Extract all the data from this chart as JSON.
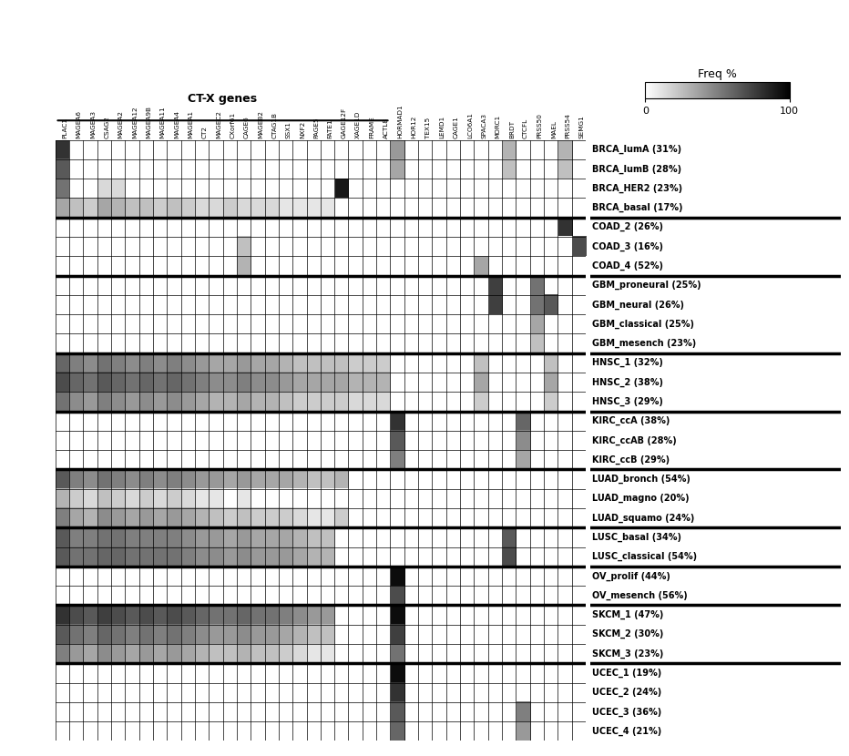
{
  "genes": [
    "PLAC1",
    "MAGEA6",
    "MAGEA3",
    "CSAG2",
    "MAGEA2",
    "MAGEA12",
    "MAGEA9B",
    "MAGEA11",
    "MAGEA4",
    "MAGEA1",
    "CT2",
    "MAGEC2",
    "CXorf61",
    "CAGE6",
    "MAGEB2",
    "CTAG1B",
    "SSX1",
    "NXF2",
    "PAGE5",
    "FATE1",
    "GAGE12F",
    "XAGE1D",
    "FRAME",
    "ACTL8",
    "HORMAD1",
    "HOR12",
    "TEX15",
    "LEMD1",
    "CAGE1",
    "LCO6A1",
    "SPACA3",
    "MORC1",
    "BRDT",
    "CTCFL",
    "PRSS50",
    "MAEL",
    "PRSS54",
    "SEMG1"
  ],
  "n_ctx_genes": 24,
  "cancer_groups": [
    {
      "subtypes": [
        "BRCA_lumA (31%)",
        "BRCA_lumB (28%)",
        "BRCA_HER2 (23%)",
        "BRCA_basal (17%)"
      ],
      "data": [
        [
          80,
          5,
          5,
          5,
          5,
          5,
          5,
          5,
          5,
          5,
          5,
          5,
          5,
          5,
          5,
          5,
          5,
          5,
          5,
          5,
          5,
          5,
          5,
          5,
          40,
          5,
          5,
          5,
          5,
          5,
          5,
          5,
          30,
          5,
          5,
          5,
          30,
          5
        ],
        [
          65,
          5,
          5,
          5,
          5,
          5,
          5,
          5,
          5,
          5,
          5,
          5,
          5,
          5,
          5,
          5,
          5,
          5,
          5,
          5,
          5,
          5,
          5,
          5,
          35,
          5,
          5,
          5,
          5,
          5,
          5,
          5,
          25,
          5,
          5,
          5,
          25,
          5
        ],
        [
          55,
          5,
          5,
          15,
          15,
          5,
          5,
          5,
          5,
          5,
          5,
          5,
          5,
          5,
          5,
          5,
          5,
          5,
          5,
          5,
          90,
          5,
          5,
          5,
          5,
          5,
          5,
          5,
          5,
          5,
          5,
          5,
          5,
          5,
          5,
          5,
          5,
          5
        ],
        [
          35,
          25,
          20,
          35,
          30,
          25,
          25,
          20,
          25,
          20,
          15,
          15,
          20,
          15,
          15,
          15,
          10,
          10,
          10,
          10,
          5,
          5,
          5,
          5,
          5,
          5,
          5,
          5,
          5,
          5,
          5,
          5,
          5,
          5,
          5,
          5,
          5,
          5
        ]
      ]
    },
    {
      "subtypes": [
        "COAD_2 (26%)",
        "COAD_3 (16%)",
        "COAD_4 (52%)"
      ],
      "data": [
        [
          5,
          5,
          5,
          5,
          5,
          5,
          5,
          5,
          5,
          5,
          5,
          5,
          5,
          5,
          5,
          5,
          5,
          5,
          5,
          5,
          5,
          5,
          5,
          5,
          5,
          5,
          5,
          5,
          5,
          5,
          5,
          5,
          5,
          5,
          5,
          5,
          80,
          5
        ],
        [
          5,
          5,
          5,
          5,
          5,
          5,
          5,
          5,
          5,
          5,
          5,
          5,
          5,
          25,
          5,
          5,
          5,
          5,
          5,
          5,
          5,
          5,
          5,
          5,
          5,
          5,
          5,
          5,
          5,
          5,
          5,
          5,
          5,
          5,
          5,
          5,
          5,
          70
        ],
        [
          5,
          5,
          5,
          5,
          5,
          5,
          5,
          5,
          5,
          5,
          5,
          5,
          5,
          30,
          5,
          5,
          5,
          5,
          5,
          5,
          5,
          5,
          5,
          5,
          5,
          5,
          5,
          5,
          5,
          5,
          35,
          5,
          5,
          5,
          5,
          5,
          5,
          5
        ]
      ]
    },
    {
      "subtypes": [
        "GBM_proneural (25%)",
        "GBM_neural (26%)",
        "GBM_classical (25%)",
        "GBM_mesench (23%)"
      ],
      "data": [
        [
          5,
          5,
          5,
          5,
          5,
          5,
          5,
          5,
          5,
          5,
          5,
          5,
          5,
          5,
          5,
          5,
          5,
          5,
          5,
          5,
          5,
          5,
          5,
          5,
          5,
          5,
          5,
          5,
          5,
          5,
          5,
          75,
          5,
          5,
          55,
          5,
          5,
          5
        ],
        [
          5,
          5,
          5,
          5,
          5,
          5,
          5,
          5,
          5,
          5,
          5,
          5,
          5,
          5,
          5,
          5,
          5,
          5,
          5,
          5,
          5,
          5,
          5,
          5,
          5,
          5,
          5,
          5,
          5,
          5,
          5,
          75,
          5,
          5,
          55,
          65,
          5,
          5
        ],
        [
          5,
          5,
          5,
          5,
          5,
          5,
          5,
          5,
          5,
          5,
          5,
          5,
          5,
          5,
          5,
          5,
          5,
          5,
          5,
          5,
          5,
          5,
          5,
          5,
          5,
          5,
          5,
          5,
          5,
          5,
          5,
          5,
          5,
          5,
          35,
          5,
          5,
          5
        ],
        [
          5,
          5,
          5,
          5,
          5,
          5,
          5,
          5,
          5,
          5,
          5,
          5,
          5,
          5,
          5,
          5,
          5,
          5,
          5,
          5,
          5,
          5,
          5,
          5,
          5,
          5,
          5,
          5,
          5,
          5,
          5,
          5,
          5,
          5,
          25,
          5,
          5,
          5
        ]
      ]
    },
    {
      "subtypes": [
        "HNSC_1 (32%)",
        "HNSC_2 (38%)",
        "HNSC_3 (29%)"
      ],
      "data": [
        [
          60,
          50,
          45,
          55,
          50,
          45,
          50,
          45,
          50,
          45,
          40,
          35,
          35,
          40,
          35,
          35,
          30,
          25,
          25,
          25,
          25,
          20,
          20,
          20,
          5,
          5,
          5,
          5,
          5,
          5,
          25,
          5,
          5,
          5,
          5,
          25,
          5,
          5
        ],
        [
          70,
          60,
          55,
          65,
          60,
          55,
          60,
          55,
          60,
          55,
          50,
          45,
          45,
          50,
          45,
          45,
          40,
          35,
          35,
          35,
          35,
          30,
          30,
          30,
          5,
          5,
          5,
          5,
          5,
          5,
          35,
          5,
          5,
          5,
          5,
          35,
          5,
          5
        ],
        [
          55,
          45,
          40,
          50,
          45,
          40,
          45,
          40,
          45,
          40,
          35,
          30,
          30,
          35,
          30,
          30,
          25,
          20,
          20,
          20,
          20,
          15,
          15,
          15,
          5,
          5,
          5,
          5,
          5,
          5,
          20,
          5,
          5,
          5,
          5,
          20,
          5,
          5
        ]
      ]
    },
    {
      "subtypes": [
        "KIRC_ccA (38%)",
        "KIRC_ccAB (28%)",
        "KIRC_ccB (29%)"
      ],
      "data": [
        [
          5,
          5,
          5,
          5,
          5,
          5,
          5,
          5,
          5,
          5,
          5,
          5,
          5,
          5,
          5,
          5,
          5,
          5,
          5,
          5,
          5,
          5,
          5,
          5,
          80,
          5,
          5,
          5,
          5,
          5,
          5,
          5,
          5,
          60,
          5,
          5,
          5,
          5
        ],
        [
          5,
          5,
          5,
          5,
          5,
          5,
          5,
          5,
          5,
          5,
          5,
          5,
          5,
          5,
          5,
          5,
          5,
          5,
          5,
          5,
          5,
          5,
          5,
          5,
          65,
          5,
          5,
          5,
          5,
          5,
          5,
          5,
          5,
          45,
          5,
          5,
          5,
          5
        ],
        [
          5,
          5,
          5,
          5,
          5,
          5,
          5,
          5,
          5,
          5,
          5,
          5,
          5,
          5,
          5,
          5,
          5,
          5,
          5,
          5,
          5,
          5,
          5,
          5,
          50,
          5,
          5,
          5,
          5,
          5,
          5,
          5,
          5,
          35,
          5,
          5,
          5,
          5
        ]
      ]
    },
    {
      "subtypes": [
        "LUAD_bronch (54%)",
        "LUAD_magno (20%)",
        "LUAD_squamo (24%)"
      ],
      "data": [
        [
          65,
          50,
          45,
          55,
          50,
          45,
          50,
          45,
          50,
          45,
          40,
          40,
          35,
          40,
          35,
          35,
          35,
          30,
          25,
          25,
          30,
          5,
          5,
          5,
          5,
          5,
          5,
          5,
          5,
          5,
          5,
          5,
          5,
          5,
          5,
          5,
          5,
          5
        ],
        [
          30,
          20,
          15,
          25,
          20,
          15,
          20,
          15,
          20,
          15,
          10,
          10,
          5,
          10,
          5,
          5,
          5,
          5,
          5,
          5,
          5,
          5,
          5,
          5,
          5,
          5,
          5,
          5,
          5,
          5,
          5,
          5,
          5,
          5,
          5,
          5,
          5,
          5
        ],
        [
          50,
          35,
          30,
          45,
          40,
          35,
          40,
          35,
          40,
          35,
          30,
          25,
          20,
          25,
          20,
          20,
          20,
          15,
          10,
          10,
          20,
          5,
          5,
          5,
          5,
          5,
          5,
          5,
          5,
          5,
          5,
          5,
          5,
          5,
          5,
          5,
          5,
          5
        ]
      ]
    },
    {
      "subtypes": [
        "LUSC_basal (34%)",
        "LUSC_classical (54%)"
      ],
      "data": [
        [
          65,
          50,
          50,
          55,
          55,
          50,
          50,
          50,
          50,
          45,
          40,
          40,
          35,
          40,
          35,
          35,
          35,
          30,
          25,
          25,
          5,
          5,
          5,
          5,
          5,
          5,
          5,
          5,
          5,
          5,
          5,
          5,
          65,
          5,
          5,
          5,
          5,
          5
        ],
        [
          65,
          55,
          55,
          60,
          60,
          55,
          55,
          55,
          55,
          50,
          45,
          45,
          40,
          45,
          40,
          40,
          40,
          35,
          30,
          30,
          5,
          5,
          5,
          5,
          5,
          5,
          5,
          5,
          5,
          5,
          5,
          5,
          70,
          5,
          5,
          5,
          5,
          5
        ]
      ]
    },
    {
      "subtypes": [
        "OV_prolif (44%)",
        "OV_mesench (56%)"
      ],
      "data": [
        [
          5,
          5,
          5,
          5,
          5,
          5,
          5,
          5,
          5,
          5,
          5,
          5,
          5,
          5,
          5,
          5,
          5,
          5,
          5,
          5,
          5,
          5,
          5,
          5,
          95,
          5,
          5,
          5,
          5,
          5,
          5,
          5,
          5,
          5,
          5,
          5,
          5,
          5
        ],
        [
          5,
          5,
          5,
          5,
          5,
          5,
          5,
          5,
          5,
          5,
          5,
          5,
          5,
          5,
          5,
          5,
          5,
          5,
          5,
          5,
          5,
          5,
          5,
          5,
          70,
          5,
          5,
          5,
          5,
          5,
          5,
          5,
          5,
          5,
          5,
          5,
          5,
          5
        ]
      ]
    },
    {
      "subtypes": [
        "SKCM_1 (47%)",
        "SKCM_2 (30%)",
        "SKCM_3 (23%)"
      ],
      "data": [
        [
          80,
          70,
          65,
          75,
          70,
          65,
          70,
          65,
          70,
          65,
          60,
          55,
          55,
          60,
          55,
          55,
          50,
          45,
          40,
          40,
          5,
          5,
          5,
          5,
          95,
          5,
          5,
          5,
          5,
          5,
          5,
          5,
          5,
          5,
          5,
          5,
          5,
          5
        ],
        [
          65,
          55,
          50,
          60,
          55,
          50,
          55,
          50,
          55,
          50,
          45,
          40,
          40,
          45,
          40,
          40,
          35,
          30,
          25,
          25,
          5,
          5,
          5,
          5,
          75,
          5,
          5,
          5,
          5,
          5,
          5,
          5,
          5,
          5,
          5,
          5,
          5,
          5
        ],
        [
          50,
          40,
          35,
          45,
          40,
          35,
          40,
          35,
          40,
          35,
          30,
          25,
          25,
          30,
          25,
          25,
          20,
          15,
          10,
          10,
          5,
          5,
          5,
          5,
          55,
          5,
          5,
          5,
          5,
          5,
          5,
          5,
          5,
          5,
          5,
          5,
          5,
          5
        ]
      ]
    },
    {
      "subtypes": [
        "UCEC_1 (19%)",
        "UCEC_2 (24%)",
        "UCEC_3 (36%)",
        "UCEC_4 (21%)"
      ],
      "data": [
        [
          5,
          5,
          5,
          5,
          5,
          5,
          5,
          5,
          5,
          5,
          5,
          5,
          5,
          5,
          5,
          5,
          5,
          5,
          5,
          5,
          5,
          5,
          5,
          5,
          95,
          5,
          5,
          5,
          5,
          5,
          5,
          5,
          5,
          5,
          5,
          5,
          5,
          5
        ],
        [
          5,
          5,
          5,
          5,
          5,
          5,
          5,
          5,
          5,
          5,
          5,
          5,
          5,
          5,
          5,
          5,
          5,
          5,
          5,
          5,
          5,
          5,
          5,
          5,
          80,
          5,
          5,
          5,
          5,
          5,
          5,
          5,
          5,
          5,
          5,
          5,
          5,
          5
        ],
        [
          5,
          5,
          5,
          5,
          5,
          5,
          5,
          5,
          5,
          5,
          5,
          5,
          5,
          5,
          5,
          5,
          5,
          5,
          5,
          5,
          5,
          5,
          5,
          5,
          65,
          5,
          5,
          5,
          5,
          5,
          5,
          5,
          5,
          50,
          5,
          5,
          5,
          5
        ],
        [
          5,
          5,
          5,
          5,
          5,
          5,
          5,
          5,
          5,
          5,
          5,
          5,
          5,
          5,
          5,
          5,
          5,
          5,
          5,
          5,
          5,
          5,
          5,
          5,
          60,
          5,
          5,
          5,
          5,
          5,
          5,
          5,
          5,
          40,
          5,
          5,
          5,
          5
        ]
      ]
    }
  ],
  "cbar_title": "Freq %",
  "cbar_ticks": [
    0,
    100
  ],
  "cbar_ticklabels": [
    "0",
    "100"
  ]
}
